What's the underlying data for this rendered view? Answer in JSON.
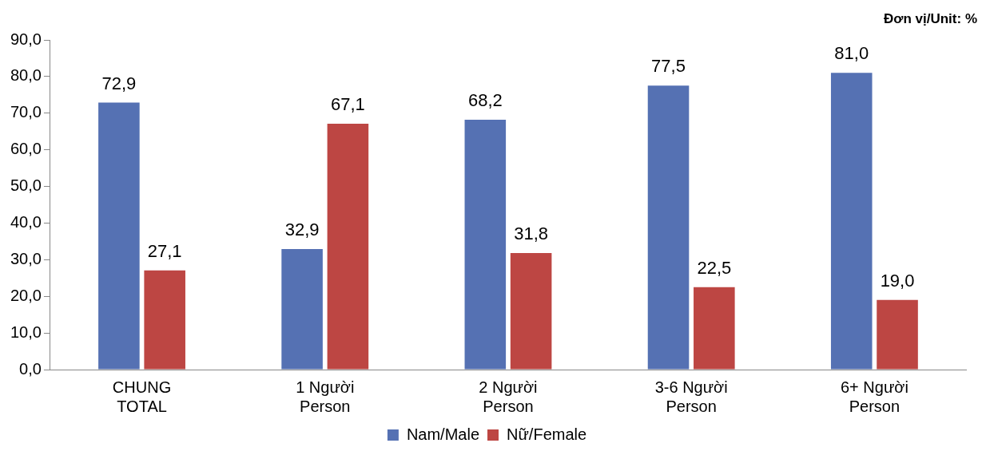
{
  "chart_data": {
    "type": "bar",
    "categories": [
      "CHUNG\nTOTAL",
      "1 Người\nPerson",
      "2 Người\nPerson",
      "3-6 Người\nPerson",
      "6+ Người\nPerson"
    ],
    "series": [
      {
        "name": "Nam/Male",
        "color": "#5571b3",
        "values": [
          72.9,
          32.9,
          68.2,
          77.5,
          81.0
        ],
        "value_labels": [
          "72,9",
          "32,9",
          "68,2",
          "77,5",
          "81,0"
        ]
      },
      {
        "name": "Nữ/Female",
        "color": "#bd4643",
        "values": [
          27.1,
          67.1,
          31.8,
          22.5,
          19.0
        ],
        "value_labels": [
          "27,1",
          "67,1",
          "31,8",
          "22,5",
          "19,0"
        ]
      }
    ],
    "ylim": [
      0,
      90
    ],
    "yticks": [
      {
        "value": 0,
        "label": "0,0"
      },
      {
        "value": 10,
        "label": "10,0"
      },
      {
        "value": 20,
        "label": "20,0"
      },
      {
        "value": 30,
        "label": "30,0"
      },
      {
        "value": 40,
        "label": "40,0"
      },
      {
        "value": 50,
        "label": "50,0"
      },
      {
        "value": 60,
        "label": "60,0"
      },
      {
        "value": 70,
        "label": "70,0"
      },
      {
        "value": 80,
        "label": "80,0"
      },
      {
        "value": 90,
        "label": "90,0"
      }
    ],
    "grid": false,
    "legend": "bottom",
    "annotations": [
      "Đơn vị/Unit: %"
    ]
  }
}
